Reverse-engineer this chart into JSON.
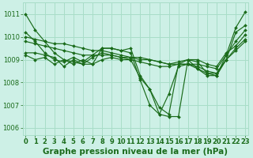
{
  "title": "Graphe pression niveau de la mer (hPa)",
  "bg_color": "#cdf0e6",
  "grid_color": "#a8ddc8",
  "line_color": "#1a6b1a",
  "xlim": [
    -0.3,
    23.3
  ],
  "ylim": [
    1005.7,
    1011.5
  ],
  "yticks": [
    1006,
    1007,
    1008,
    1009,
    1010,
    1011
  ],
  "xticks": [
    0,
    1,
    2,
    3,
    4,
    5,
    6,
    7,
    8,
    9,
    10,
    11,
    12,
    13,
    14,
    15,
    16,
    17,
    18,
    19,
    20,
    21,
    22,
    23
  ],
  "series": [
    {
      "y": [
        1011.0,
        1010.3,
        1009.8,
        1009.3,
        1009.0,
        1008.9,
        1008.8,
        1008.8,
        1009.5,
        1009.5,
        1009.4,
        1009.3,
        1008.1,
        1007.0,
        1006.6,
        1006.5,
        1006.5,
        1009.0,
        1008.9,
        1008.4,
        1008.3,
        1009.2,
        1010.4,
        1011.1
      ]
    },
    {
      "note": "line2: starts ~1010.2, oscillates 1008.8-1009.3, then dips 1006.5-1006.6 around 14-15, rises end",
      "y": [
        1010.2,
        1009.8,
        1009.3,
        1009.0,
        1008.9,
        1009.1,
        1008.9,
        1009.2,
        1009.5,
        1009.5,
        1009.4,
        1009.5,
        1008.3,
        1007.7,
        1006.9,
        1006.6,
        1008.8,
        1009.0,
        1008.6,
        1008.3,
        1008.3,
        1009.0,
        1010.2,
        1010.5
      ]
    },
    {
      "y": [
        1009.3,
        1009.3,
        1009.2,
        1009.1,
        1008.7,
        1009.0,
        1008.8,
        1009.1,
        1009.3,
        1009.2,
        1009.1,
        1009.0,
        1008.2,
        1007.7,
        1006.6,
        1007.5,
        1008.7,
        1008.8,
        1008.6,
        1008.4,
        1008.4,
        1009.0,
        1009.5,
        1009.9
      ]
    },
    {
      "y": [
        1010.0,
        1009.9,
        1009.8,
        1009.7,
        1009.7,
        1009.6,
        1009.5,
        1009.4,
        1009.4,
        1009.3,
        1009.2,
        1009.1,
        1009.1,
        1009.0,
        1008.9,
        1008.8,
        1008.8,
        1008.8,
        1008.8,
        1008.7,
        1008.6,
        1009.2,
        1009.8,
        1010.3
      ]
    },
    {
      "y": [
        1009.8,
        1009.7,
        1009.6,
        1009.5,
        1009.4,
        1009.3,
        1009.2,
        1009.2,
        1009.2,
        1009.2,
        1009.1,
        1009.1,
        1009.0,
        1009.0,
        1008.9,
        1008.8,
        1008.9,
        1009.0,
        1009.0,
        1008.8,
        1008.7,
        1009.3,
        1009.6,
        1010.1
      ]
    },
    {
      "y": [
        1009.2,
        1009.0,
        1009.1,
        1008.8,
        1009.0,
        1008.8,
        1009.0,
        1008.8,
        1009.0,
        1009.1,
        1009.0,
        1009.0,
        1008.9,
        1008.8,
        1008.7,
        1008.7,
        1008.8,
        1008.8,
        1008.7,
        1008.5,
        1008.4,
        1009.0,
        1009.4,
        1009.8
      ]
    }
  ],
  "marker": "D",
  "marker_size": 2.0,
  "linewidth": 0.85,
  "tick_fontsize": 6,
  "title_fontsize": 7.5
}
